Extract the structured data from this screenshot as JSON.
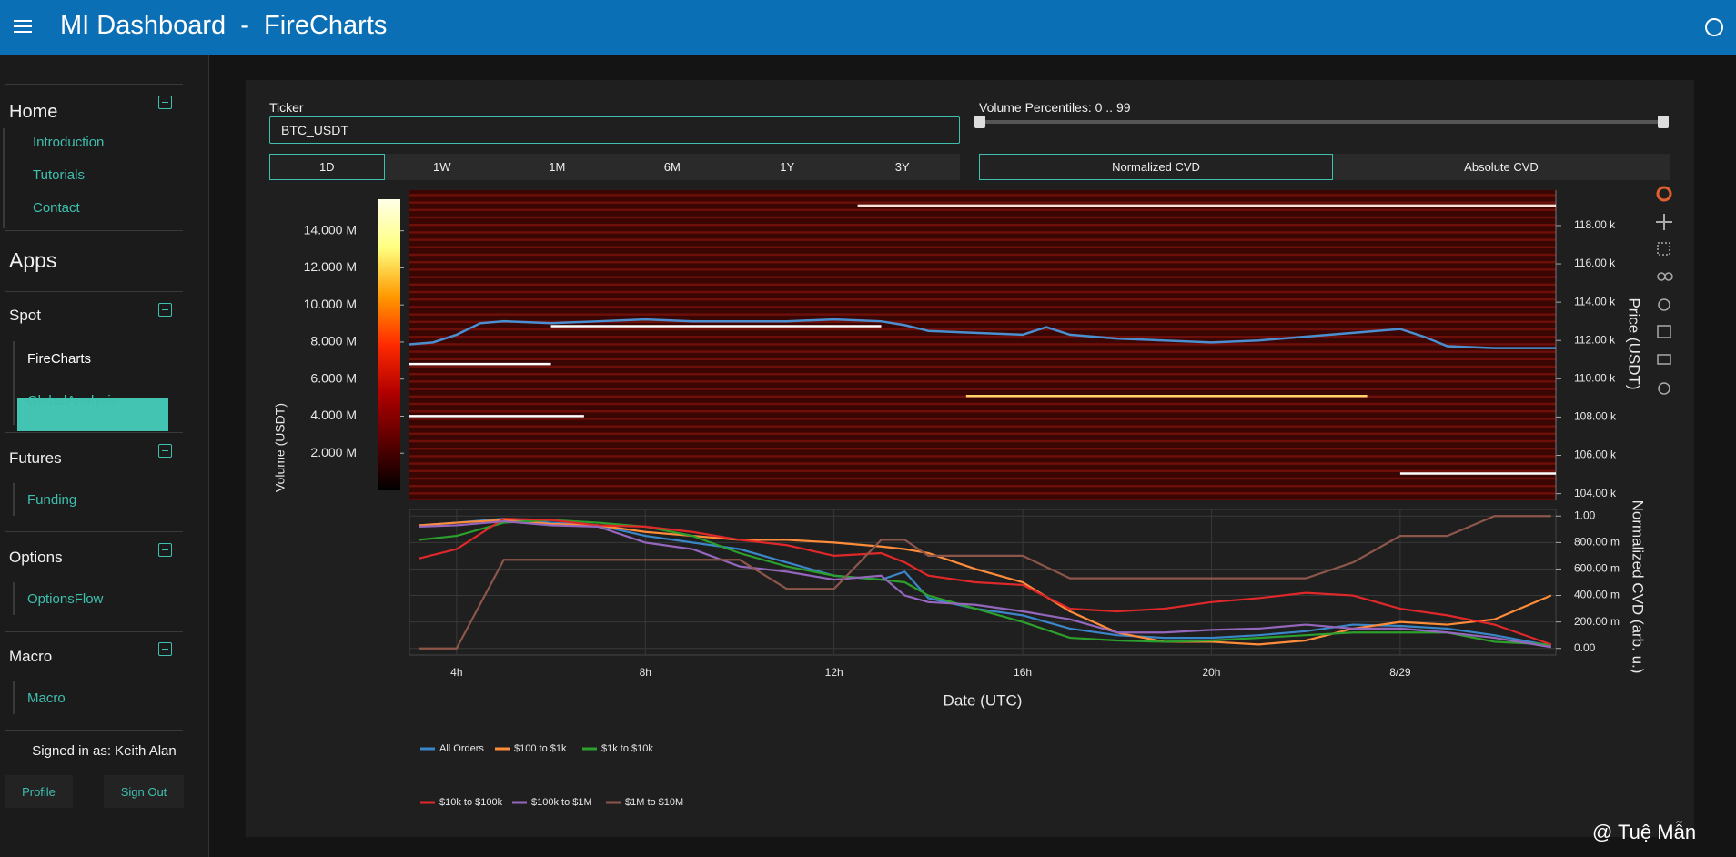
{
  "header": {
    "title": "MI Dashboard  -  FireCharts"
  },
  "sidebar": {
    "home": {
      "title": "Home",
      "items": [
        "Introduction",
        "Tutorials",
        "Contact"
      ]
    },
    "apps_title": "Apps",
    "groups": [
      {
        "title": "Spot",
        "items": [
          "FireCharts",
          "GlobalAnalysis"
        ]
      },
      {
        "title": "Futures",
        "items": [
          "Funding"
        ]
      },
      {
        "title": "Options",
        "items": [
          "OptionsFlow"
        ]
      },
      {
        "title": "Macro",
        "items": [
          "Macro"
        ]
      }
    ],
    "signed_in": "Signed in as: Keith Alan",
    "buttons": [
      "Profile",
      "Sign Out"
    ]
  },
  "controls": {
    "ticker_label": "Ticker",
    "ticker_value": "BTC_USDT",
    "ranges": [
      "1D",
      "1W",
      "1M",
      "6M",
      "1Y",
      "3Y"
    ],
    "percentile_label": "Volume Percentiles: 0 .. 99",
    "cvd_modes": [
      "Normalized CVD",
      "Absolute CVD"
    ]
  },
  "chart_data": [
    {
      "type": "heatmap",
      "ylabel": "Price (USDT)",
      "colorbar_label": "Volume (USDT)",
      "xlim": [
        3,
        27.3
      ],
      "ylim": [
        103650,
        119850
      ],
      "yticks": [
        {
          "value": 104000,
          "label": "104.00 k"
        },
        {
          "value": 106000,
          "label": "106.00 k"
        },
        {
          "value": 108000,
          "label": "108.00 k"
        },
        {
          "value": 110000,
          "label": "110.00 k"
        },
        {
          "value": 112000,
          "label": "112.00 k"
        },
        {
          "value": 114000,
          "label": "114.00 k"
        },
        {
          "value": 116000,
          "label": "116.00 k"
        },
        {
          "value": 118000,
          "label": "118.00 k"
        }
      ],
      "clim": [
        0,
        15700000
      ],
      "cticks": [
        {
          "value": 2000000,
          "label": "2.000 M"
        },
        {
          "value": 4000000,
          "label": "4.000 M"
        },
        {
          "value": 6000000,
          "label": "6.000 M"
        },
        {
          "value": 8000000,
          "label": "8.000 M"
        },
        {
          "value": 10000000,
          "label": "10.000 M"
        },
        {
          "value": 12000000,
          "label": "12.000 M"
        },
        {
          "value": 14000000,
          "label": "14.000 M"
        }
      ],
      "colorscale": [
        "#000000",
        "#5a0000",
        "#b00000",
        "#ff2a00",
        "#ff9a00",
        "#ffff80",
        "#ffffe8"
      ],
      "price_line": {
        "color": "#4a8fd0",
        "x": [
          3.0,
          3.5,
          4.0,
          4.5,
          5,
          6,
          7,
          8,
          9,
          10,
          11,
          12,
          13,
          13.5,
          14,
          15,
          16,
          16.5,
          17,
          18,
          19,
          20,
          21,
          22,
          23,
          24,
          24.5,
          25,
          26,
          27.3
        ],
        "values": [
          111800,
          111900,
          112300,
          112900,
          113000,
          112900,
          113000,
          113100,
          113000,
          113000,
          113000,
          113100,
          113000,
          112800,
          112500,
          112400,
          112300,
          112700,
          112300,
          112100,
          112000,
          111900,
          112000,
          112200,
          112400,
          112600,
          112200,
          111700,
          111600,
          111600
        ]
      },
      "levels": [
        {
          "price": 119050,
          "x0": 12.5,
          "x1": 27.3,
          "color": "#ffe0d0"
        },
        {
          "price": 112750,
          "x0": 6.0,
          "x1": 13.0,
          "color": "#ffffff"
        },
        {
          "price": 110770,
          "x0": 3.0,
          "x1": 6.0,
          "color": "#ffffff"
        },
        {
          "price": 109100,
          "x0": 14.8,
          "x1": 23.3,
          "color": "#ffd36a"
        },
        {
          "price": 108050,
          "x0": 3.0,
          "x1": 6.7,
          "color": "#ffffff"
        },
        {
          "price": 105050,
          "x0": 24.0,
          "x1": 27.3,
          "color": "#ffffff"
        }
      ]
    },
    {
      "type": "line",
      "xlabel": "Date (UTC)",
      "ylabel": "Normalized CVD (arb. u.)",
      "xlim": [
        3,
        27.3
      ],
      "xticks": [
        {
          "value": 4,
          "label": "4h"
        },
        {
          "value": 8,
          "label": "8h"
        },
        {
          "value": 12,
          "label": "12h"
        },
        {
          "value": 16,
          "label": "16h"
        },
        {
          "value": 20,
          "label": "20h"
        },
        {
          "value": 24,
          "label": "8/29"
        }
      ],
      "ylim": [
        -0.05,
        1.05
      ],
      "yticks": [
        {
          "value": 0,
          "label": "0.00"
        },
        {
          "value": 0.2,
          "label": "200.00 m"
        },
        {
          "value": 0.4,
          "label": "400.00 m"
        },
        {
          "value": 0.6,
          "label": "600.00 m"
        },
        {
          "value": 0.8,
          "label": "800.00 m"
        },
        {
          "value": 1,
          "label": "1.00"
        }
      ],
      "grid": true,
      "x": [
        3.2,
        4,
        5,
        6,
        7,
        8,
        9,
        10,
        11,
        12,
        13,
        13.5,
        14,
        15,
        16,
        17,
        18,
        19,
        20,
        21,
        22,
        23,
        24,
        25,
        26,
        27.2
      ],
      "series": [
        {
          "name": "All Orders",
          "color": "#3a86c8",
          "values": [
            0.93,
            0.95,
            0.98,
            0.95,
            0.93,
            0.85,
            0.8,
            0.75,
            0.65,
            0.55,
            0.52,
            0.58,
            0.38,
            0.3,
            0.25,
            0.15,
            0.1,
            0.08,
            0.08,
            0.1,
            0.13,
            0.18,
            0.17,
            0.15,
            0.1,
            0.02
          ]
        },
        {
          "name": "$100 to $1k",
          "color": "#ff8c3a",
          "values": [
            0.93,
            0.95,
            0.97,
            0.94,
            0.93,
            0.88,
            0.85,
            0.82,
            0.82,
            0.8,
            0.77,
            0.75,
            0.72,
            0.6,
            0.5,
            0.28,
            0.12,
            0.05,
            0.05,
            0.03,
            0.06,
            0.15,
            0.2,
            0.18,
            0.22,
            0.4
          ]
        },
        {
          "name": "$1k to $10k",
          "color": "#2ca02c",
          "values": [
            0.82,
            0.85,
            0.95,
            0.97,
            0.95,
            0.92,
            0.85,
            0.72,
            0.62,
            0.55,
            0.52,
            0.5,
            0.4,
            0.3,
            0.2,
            0.08,
            0.06,
            0.05,
            0.06,
            0.08,
            0.1,
            0.12,
            0.12,
            0.12,
            0.05,
            0.03
          ]
        },
        {
          "name": "$10k to $100k",
          "color": "#e0282a",
          "values": [
            0.68,
            0.75,
            0.98,
            0.97,
            0.93,
            0.92,
            0.88,
            0.82,
            0.78,
            0.7,
            0.72,
            0.65,
            0.55,
            0.5,
            0.48,
            0.3,
            0.28,
            0.3,
            0.35,
            0.38,
            0.42,
            0.4,
            0.3,
            0.25,
            0.18,
            0.03
          ]
        },
        {
          "name": "$100k to $1M",
          "color": "#9467bd",
          "values": [
            0.92,
            0.93,
            0.96,
            0.93,
            0.92,
            0.8,
            0.75,
            0.62,
            0.58,
            0.52,
            0.55,
            0.4,
            0.35,
            0.33,
            0.28,
            0.22,
            0.12,
            0.12,
            0.14,
            0.15,
            0.18,
            0.15,
            0.15,
            0.12,
            0.08,
            0.01
          ]
        },
        {
          "name": "$1M to $10M",
          "color": "#8c564b",
          "values": [
            0.0,
            0.0,
            0.67,
            0.67,
            0.67,
            0.67,
            0.67,
            0.67,
            0.45,
            0.45,
            0.82,
            0.82,
            0.7,
            0.7,
            0.7,
            0.53,
            0.53,
            0.53,
            0.53,
            0.53,
            0.53,
            0.65,
            0.85,
            0.85,
            1.0,
            1.0
          ]
        }
      ]
    }
  ],
  "watermark": "@ Tuệ Mẫn"
}
